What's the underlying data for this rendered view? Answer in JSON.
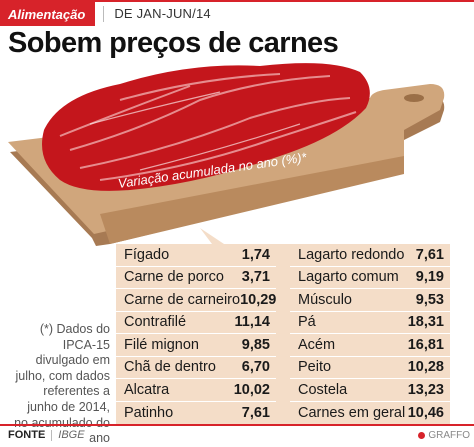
{
  "header": {
    "section": "Alimentação",
    "period": "DE JAN-JUN/14"
  },
  "title": "Sobem preços de carnes",
  "board_label": "Variação acumulada no ano (%)*",
  "note": "(*) Dados do IPCA-15 divulgado em julho, com dados referentes a junho de 2014, no acumulado do ano",
  "footer": {
    "source_label": "FONTE",
    "source": "IBGE",
    "credit": "GRAFFO"
  },
  "colors": {
    "accent": "#d7232a",
    "panel": "#f4ddc8",
    "board": "#c49a72",
    "board_label_band": "#b98a5e",
    "meat": "#c4161c"
  },
  "chart_data": {
    "type": "table",
    "columns": [
      {
        "rows": [
          {
            "label": "Fígado",
            "value": "1,74"
          },
          {
            "label": "Carne de porco",
            "value": "3,71"
          },
          {
            "label": "Carne de carneiro",
            "value": "10,29"
          },
          {
            "label": "Contrafilé",
            "value": "11,14"
          },
          {
            "label": "Filé mignon",
            "value": "9,85"
          },
          {
            "label": "Chã de dentro",
            "value": "6,70"
          },
          {
            "label": "Alcatra",
            "value": "10,02"
          },
          {
            "label": "Patinho",
            "value": "7,61"
          }
        ]
      },
      {
        "rows": [
          {
            "label": "Lagarto redondo",
            "value": "7,61"
          },
          {
            "label": "Lagarto comum",
            "value": "9,19"
          },
          {
            "label": "Músculo",
            "value": "9,53"
          },
          {
            "label": "Pá",
            "value": "18,31"
          },
          {
            "label": "Acém",
            "value": "16,81"
          },
          {
            "label": "Peito",
            "value": "10,28"
          },
          {
            "label": "Costela",
            "value": "13,23"
          },
          {
            "label": "Carnes em geral",
            "value": "10,46"
          }
        ]
      }
    ]
  }
}
